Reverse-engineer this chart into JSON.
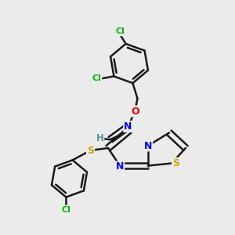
{
  "background_color": "#ebebeb",
  "bond_color": "#1a1a1a",
  "atom_colors": {
    "Cl": "#00bb00",
    "N": "#0000ee",
    "O": "#ee0000",
    "S": "#ccaa00",
    "H": "#559999",
    "C": "#1a1a1a"
  },
  "line_width": 1.8,
  "dbo": 0.013,
  "figsize": [
    3.0,
    3.0
  ],
  "dpi": 100
}
